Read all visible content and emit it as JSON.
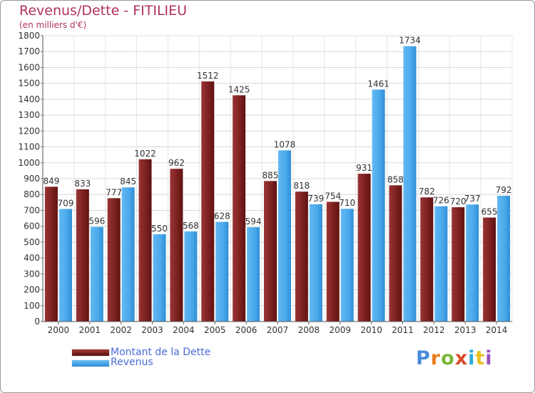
{
  "header": {
    "title": "Revenus/Dette - FITILIEU",
    "subtitle": "(en milliers d'€)"
  },
  "legend": {
    "debt_label": "Montant de la Dette",
    "revenue_label": "Revenus"
  },
  "logo": {
    "text": "Proxiti",
    "letter_colors": [
      "#4a8ad8",
      "#e8801a",
      "#7ab838",
      "#d94a2a",
      "#2aa8d8",
      "#e8c020",
      "#9a50c0"
    ]
  },
  "colors": {
    "debt": "#7a1f1f",
    "revenue": "#4aa8ea",
    "title": "#b03060",
    "legend_text": "#4a6bd6"
  },
  "chart_data": {
    "type": "bar",
    "categories": [
      "2000",
      "2001",
      "2002",
      "2003",
      "2004",
      "2005",
      "2006",
      "2007",
      "2008",
      "2009",
      "2010",
      "2011",
      "2012",
      "2013",
      "2014"
    ],
    "series": [
      {
        "name": "Montant de la Dette",
        "values": [
          849,
          833,
          777,
          1022,
          962,
          1512,
          1425,
          885,
          818,
          754,
          931,
          858,
          782,
          720,
          655
        ]
      },
      {
        "name": "Revenus",
        "values": [
          709,
          596,
          845,
          550,
          568,
          628,
          594,
          1078,
          739,
          710,
          1461,
          1734,
          726,
          737,
          792
        ]
      }
    ],
    "ylim": [
      0,
      1800
    ],
    "yticks": [
      0,
      100,
      200,
      300,
      400,
      500,
      600,
      700,
      800,
      900,
      1000,
      1100,
      1200,
      1300,
      1400,
      1500,
      1600,
      1700,
      1800
    ],
    "grid": true,
    "legend_position": "bottom-left"
  }
}
